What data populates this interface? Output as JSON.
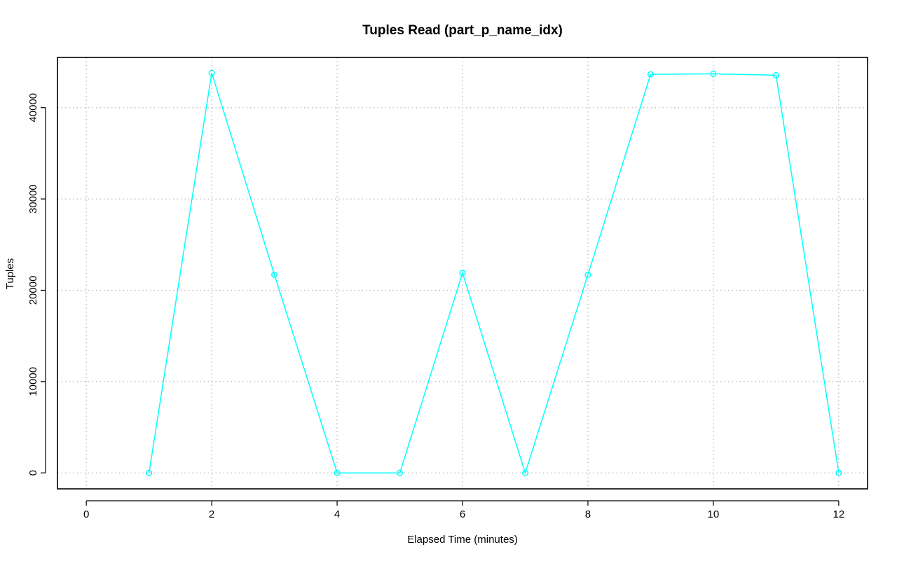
{
  "chart_data": {
    "type": "line",
    "title": "Tuples Read (part_p_name_idx)",
    "xlabel": "Elapsed Time (minutes)",
    "ylabel": "Tuples",
    "xlim": [
      -0.46,
      12.46
    ],
    "ylim": [
      -1750,
      45500
    ],
    "x_ticks": [
      0,
      2,
      4,
      6,
      8,
      10,
      12
    ],
    "y_ticks": [
      0,
      10000,
      20000,
      30000,
      40000
    ],
    "grid": true,
    "color": "#00ffff",
    "series": [
      {
        "x": [
          1,
          2,
          3,
          4,
          5,
          6,
          7,
          8,
          9,
          10,
          11,
          12
        ],
        "y": [
          0,
          43800,
          21700,
          0,
          0,
          21900,
          0,
          21700,
          43650,
          43700,
          43550,
          0
        ]
      }
    ]
  }
}
